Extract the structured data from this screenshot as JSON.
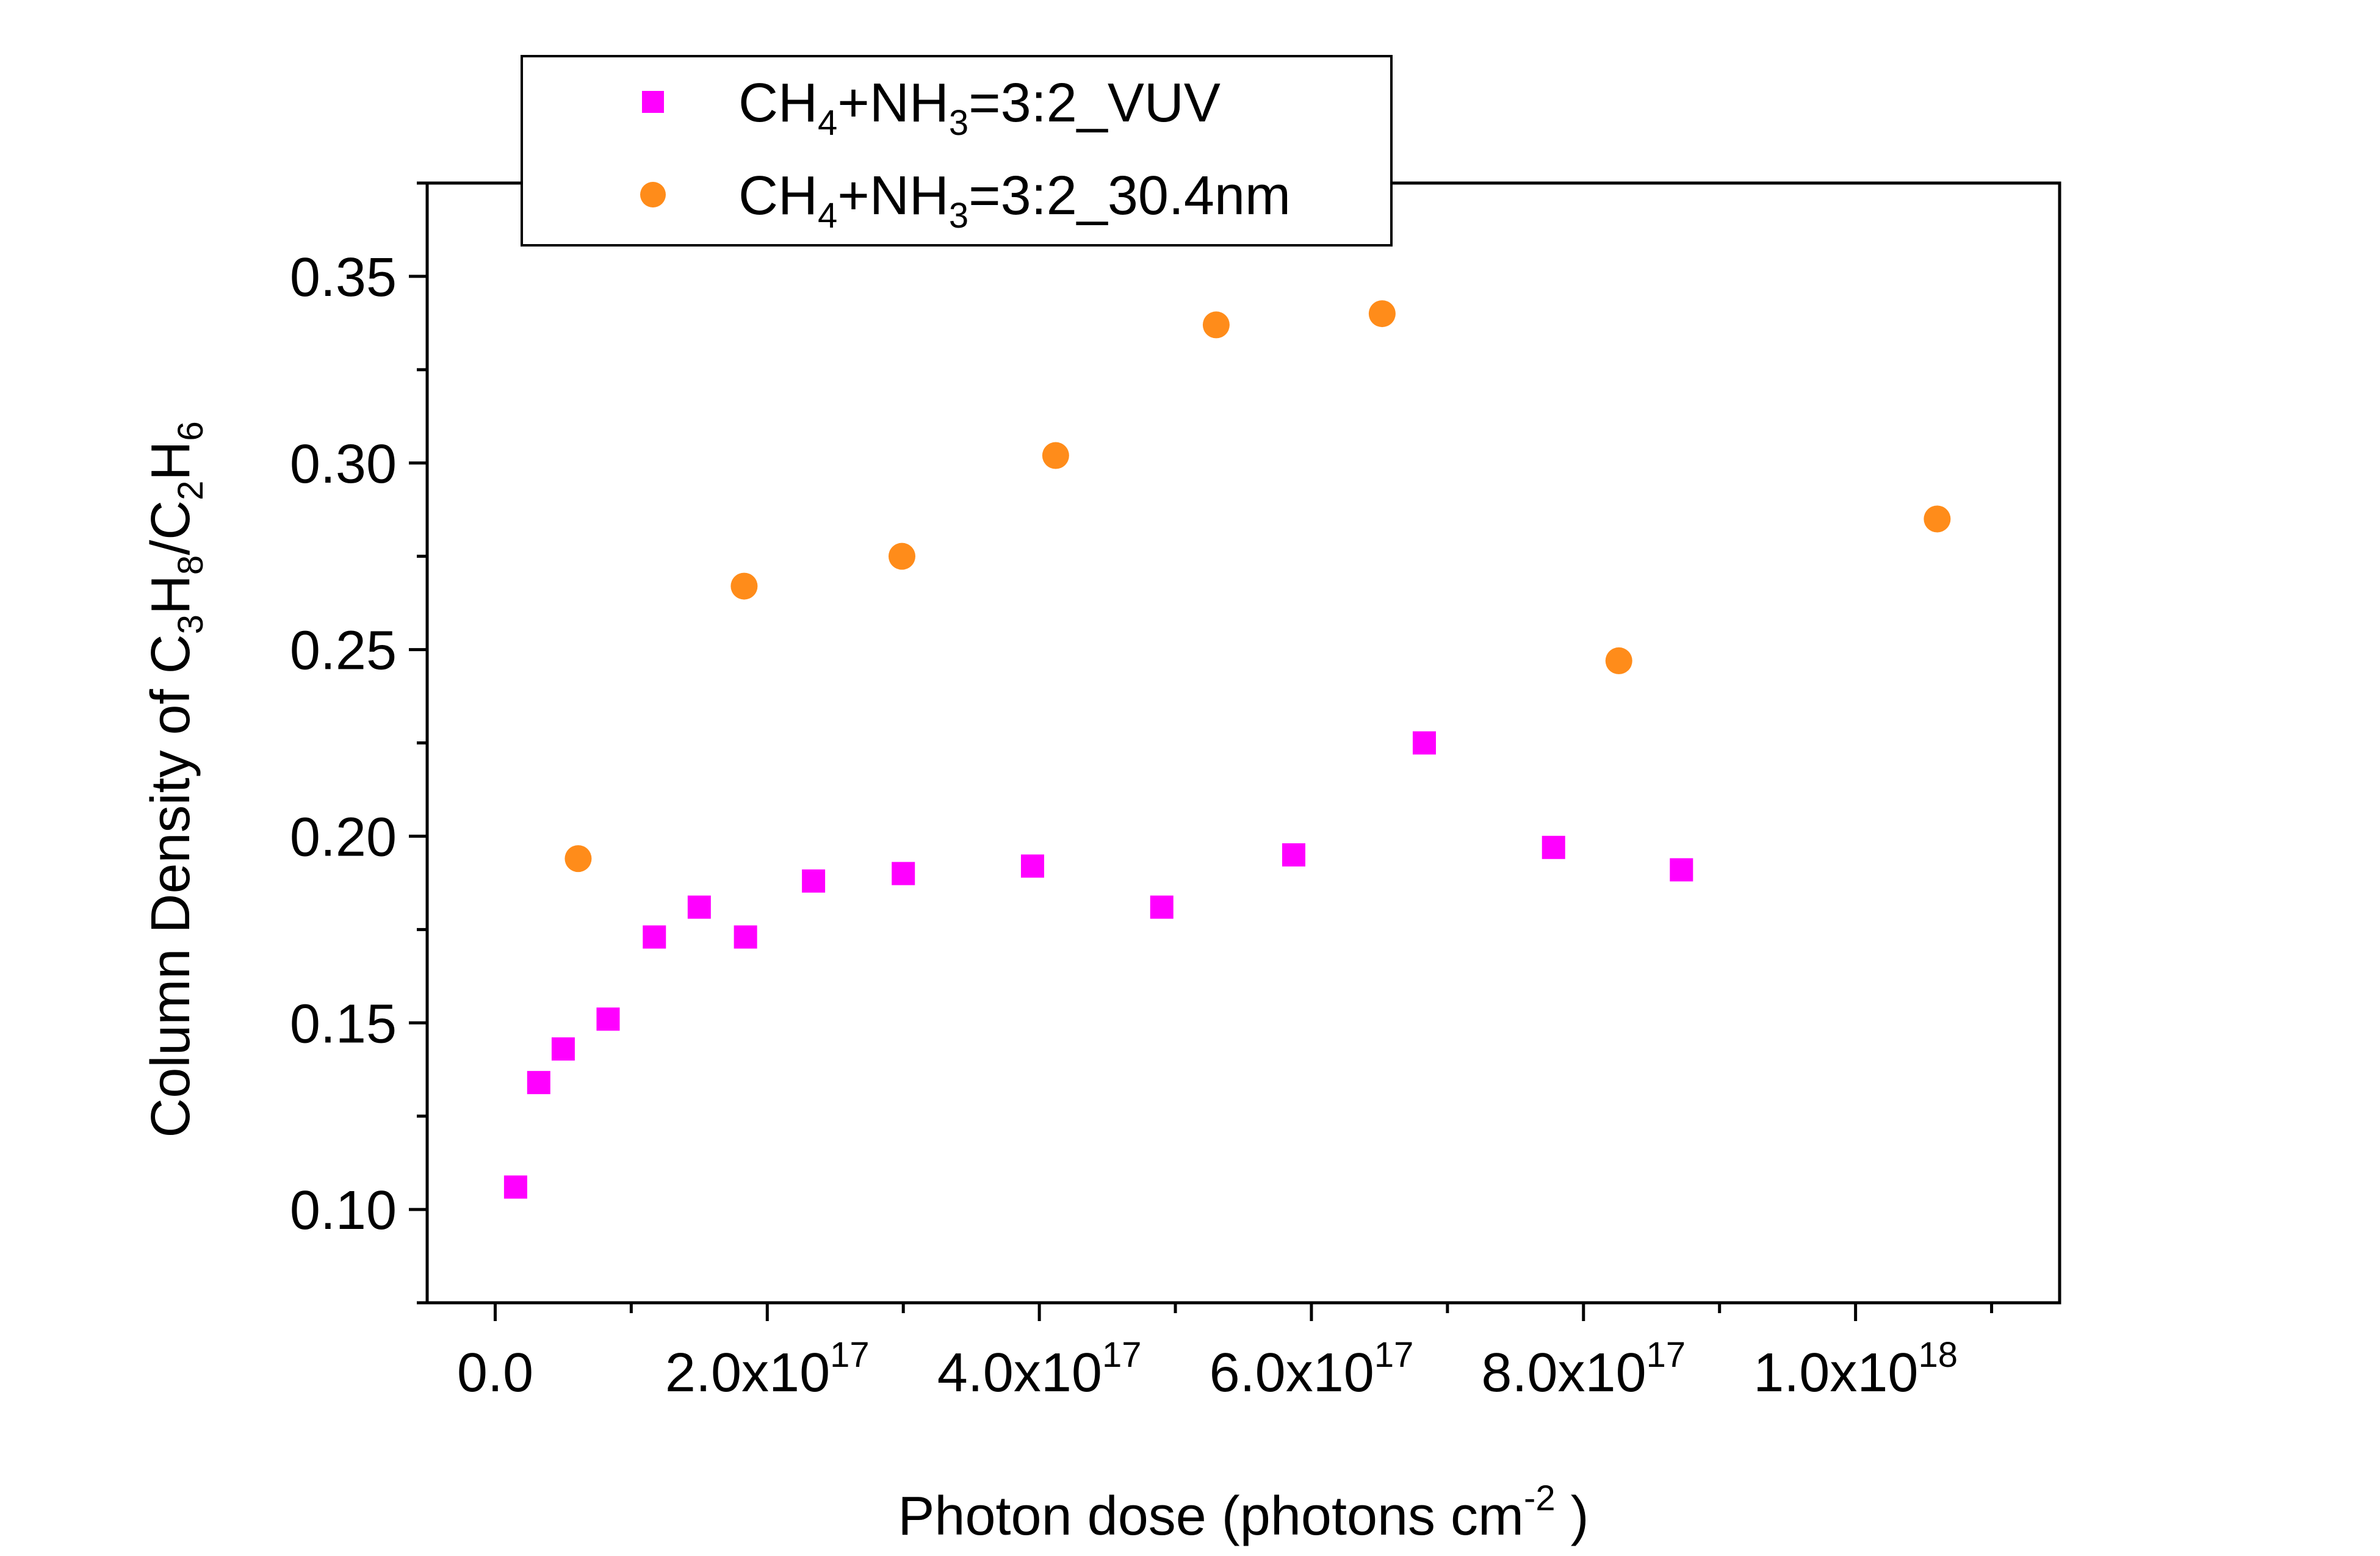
{
  "chart_data": {
    "type": "scatter",
    "xlabel": {
      "main": "Photon dose (photons cm",
      "sup": "-2",
      "tail": " )"
    },
    "ylabel": {
      "parts": [
        {
          "t": "Column Density of C",
          "s": "n"
        },
        {
          "t": "3",
          "s": "sub"
        },
        {
          "t": "H",
          "s": "n"
        },
        {
          "t": "8",
          "s": "sub"
        },
        {
          "t": "/C",
          "s": "n"
        },
        {
          "t": "2",
          "s": "sub"
        },
        {
          "t": "H",
          "s": "n"
        },
        {
          "t": "6",
          "s": "sub"
        }
      ]
    },
    "xlim": [
      -5e+16,
      1.15e+18
    ],
    "ylim": [
      0.075,
      0.375
    ],
    "x_major_ticks": [
      0,
      2e+17,
      4e+17,
      6e+17,
      8e+17,
      1e+18
    ],
    "x_tick_labels": [
      {
        "mant": "0.0",
        "exp": ""
      },
      {
        "mant": "2.0x10",
        "exp": "17"
      },
      {
        "mant": "4.0x10",
        "exp": "17"
      },
      {
        "mant": "6.0x10",
        "exp": "17"
      },
      {
        "mant": "8.0x10",
        "exp": "17"
      },
      {
        "mant": "1.0x10",
        "exp": "18"
      }
    ],
    "y_major_ticks": [
      0.1,
      0.15,
      0.2,
      0.25,
      0.3,
      0.35
    ],
    "y_tick_labels": [
      "0.10",
      "0.15",
      "0.20",
      "0.25",
      "0.30",
      "0.35"
    ],
    "grid": false,
    "legend_position": "top-left-outside",
    "series": [
      {
        "name": {
          "parts": [
            {
              "t": "CH",
              "s": "n"
            },
            {
              "t": "4",
              "s": "sub"
            },
            {
              "t": "+NH",
              "s": "n"
            },
            {
              "t": "3",
              "s": "sub"
            },
            {
              "t": "=3:2_VUV",
              "s": "n"
            }
          ]
        },
        "marker": "square",
        "color": "#ff00ff",
        "points": [
          [
            1.5e+16,
            0.106
          ],
          [
            3.2e+16,
            0.134
          ],
          [
            5e+16,
            0.143
          ],
          [
            8.3e+16,
            0.151
          ],
          [
            1.17e+17,
            0.173
          ],
          [
            1.5e+17,
            0.181
          ],
          [
            1.84e+17,
            0.173
          ],
          [
            2.34e+17,
            0.188
          ],
          [
            3e+17,
            0.19
          ],
          [
            3.95e+17,
            0.192
          ],
          [
            4.9e+17,
            0.181
          ],
          [
            5.87e+17,
            0.195
          ],
          [
            6.83e+17,
            0.225
          ],
          [
            7.78e+17,
            0.197
          ],
          [
            8.72e+17,
            0.191
          ]
        ]
      },
      {
        "name": {
          "parts": [
            {
              "t": "CH",
              "s": "n"
            },
            {
              "t": "4",
              "s": "sub"
            },
            {
              "t": "+NH",
              "s": "n"
            },
            {
              "t": "3",
              "s": "sub"
            },
            {
              "t": "=3:2_30.4nm",
              "s": "n"
            }
          ]
        },
        "marker": "circle",
        "color": "#ff8c1a",
        "points": [
          [
            6.1e+16,
            0.194
          ],
          [
            1.83e+17,
            0.267
          ],
          [
            2.99e+17,
            0.275
          ],
          [
            4.12e+17,
            0.302
          ],
          [
            5.3e+17,
            0.337
          ],
          [
            6.52e+17,
            0.34
          ],
          [
            8.26e+17,
            0.247
          ],
          [
            1.06e+18,
            0.285
          ]
        ]
      }
    ]
  }
}
